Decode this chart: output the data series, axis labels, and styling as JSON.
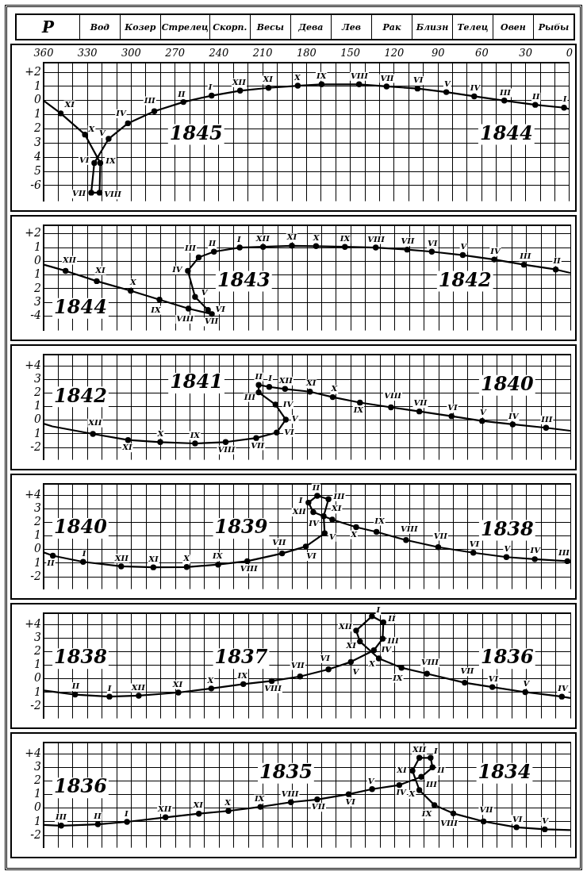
{
  "chart_data": [
    {
      "type": "other",
      "annotations": [
        "P",
        "Вод",
        "Козер",
        "Стрелец",
        "Скорп.",
        "Весы",
        "Дева",
        "Лев",
        "Рак",
        "Близн",
        "Телец",
        "Овен",
        "Рыбы"
      ]
    },
    {
      "type": "line",
      "annotations": [
        "1845",
        "1844"
      ],
      "xlim": [
        360,
        0
      ],
      "xticks": [
        360,
        {
          "value": 350,
          "label": null
        },
        {
          "value": 340,
          "label": null
        },
        330,
        {
          "value": 320,
          "label": null
        },
        {
          "value": 310,
          "label": null
        },
        300,
        {
          "value": 290,
          "label": null
        },
        {
          "value": 280,
          "label": null
        },
        270,
        {
          "value": 260,
          "label": null
        },
        {
          "value": 250,
          "label": null
        },
        240,
        {
          "value": 230,
          "label": null
        },
        {
          "value": 220,
          "label": null
        },
        210,
        {
          "value": 200,
          "label": null
        },
        {
          "value": 190,
          "label": null
        },
        180,
        {
          "value": 170,
          "label": null
        },
        {
          "value": 160,
          "label": null
        },
        150,
        {
          "value": 140,
          "label": null
        },
        {
          "value": 130,
          "label": null
        },
        120,
        {
          "value": 110,
          "label": null
        },
        {
          "value": 100,
          "label": null
        },
        90,
        {
          "value": 80,
          "label": null
        },
        {
          "value": 70,
          "label": null
        },
        60,
        {
          "value": 50,
          "label": null
        },
        {
          "value": 40,
          "label": null
        },
        30,
        {
          "value": 20,
          "label": null
        },
        {
          "value": 10,
          "label": null
        },
        0
      ],
      "ylim": [
        -7.1,
        2.7
      ],
      "yticks": [
        {
          "value": 2,
          "label": "+2"
        },
        1,
        0,
        {
          "value": -1,
          "label": "1"
        },
        {
          "value": -2,
          "label": "2"
        },
        {
          "value": -3,
          "label": "3"
        },
        {
          "value": -4,
          "label": "4"
        },
        {
          "value": -5,
          "label": "5"
        },
        -6
      ],
      "grid": true,
      "marker": "circle",
      "line_style": "solid",
      "series": [
        {
          "color": "#000000",
          "x": [
            0,
            3.7,
            23.4,
            44.6,
            65.2,
            84.3,
            104,
            125.2,
            144,
            169.7,
            186,
            206,
            225.5,
            245,
            264.3,
            284.2,
            302.3,
            315.5,
            325.3,
            327.4,
            321.7,
            321.2,
            331.7,
            348.3,
            360
          ],
          "values": [
            -0.6,
            -0.5,
            -0.3,
            0,
            0.3,
            0.6,
            0.85,
            1,
            1.15,
            1.15,
            1.05,
            0.9,
            0.7,
            0.35,
            -0.1,
            -0.75,
            -1.6,
            -2.7,
            -4.4,
            -6.5,
            -6.5,
            -4.4,
            -2.4,
            -0.9,
            0
          ],
          "value_labels": [
            null,
            "I",
            "II",
            "III",
            "IV",
            "V",
            "VI",
            "VII",
            "VIII",
            "IX",
            "X",
            "XI",
            "XII",
            "I",
            "II",
            "III",
            "IV",
            "V",
            "VI",
            "VII",
            "VIII",
            "IX",
            "X",
            "XI",
            null
          ]
        }
      ]
    },
    {
      "type": "line",
      "annotations": [
        "1844",
        "1843",
        "1842"
      ],
      "xlim": [
        360,
        0
      ],
      "xticks": [
        360,
        350,
        340,
        330,
        320,
        310,
        300,
        290,
        280,
        270,
        260,
        250,
        240,
        230,
        220,
        210,
        200,
        190,
        180,
        170,
        160,
        150,
        140,
        130,
        120,
        110,
        100,
        90,
        80,
        70,
        60,
        50,
        40,
        30,
        20,
        10,
        0
      ],
      "tick_labels": "y",
      "ylim": [
        -5.05,
        2.6
      ],
      "yticks": [
        {
          "value": 2,
          "label": "+2"
        },
        1,
        0,
        {
          "value": -1,
          "label": "1"
        },
        {
          "value": -2,
          "label": "2"
        },
        {
          "value": -3,
          "label": "3"
        },
        -4
      ],
      "grid": true,
      "marker": "circle",
      "line_style": "solid",
      "series": [
        {
          "color": "#000000",
          "x": [
            0,
            10,
            31.7,
            52,
            73.5,
            94.7,
            111.5,
            133,
            154.1,
            173.8,
            190.3,
            210,
            226,
            243.6,
            254,
            261.4,
            256.5,
            247.7,
            245,
            261,
            280.8,
            300.5,
            323.7,
            345,
            360
          ],
          "values": [
            -0.85,
            -0.6,
            -0.25,
            0.13,
            0.45,
            0.7,
            0.85,
            1,
            1.05,
            1.1,
            1.13,
            1.05,
            1,
            0.7,
            0.28,
            -0.7,
            -2.6,
            -3.55,
            -3.85,
            -3.45,
            -2.8,
            -2.15,
            -1.45,
            -0.7,
            -0.25
          ],
          "value_labels": [
            null,
            "II",
            "III",
            "IV",
            "V",
            "VI",
            "VII",
            "VIII",
            "IX",
            "X",
            "XI",
            "XII",
            "I",
            "II",
            "III",
            "IV",
            "V",
            "VI",
            "VII",
            "VIII",
            "IX",
            "X",
            "XI",
            "XII",
            null
          ]
        }
      ]
    },
    {
      "type": "line",
      "annotations": [
        "1842",
        "1841",
        "1840"
      ],
      "xlim": [
        360,
        0
      ],
      "xticks": [
        360,
        350,
        340,
        330,
        320,
        310,
        300,
        290,
        280,
        270,
        260,
        250,
        240,
        230,
        220,
        210,
        200,
        190,
        180,
        170,
        160,
        150,
        140,
        130,
        120,
        110,
        100,
        90,
        80,
        70,
        60,
        50,
        40,
        30,
        20,
        10,
        0
      ],
      "tick_labels": "y",
      "ylim": [
        -2.9,
        4.8
      ],
      "yticks": [
        {
          "value": 4,
          "label": "+4"
        },
        3,
        2,
        1,
        0,
        {
          "value": -1,
          "label": "1"
        },
        -2
      ],
      "grid": true,
      "marker": "circle",
      "line_style": "solid",
      "series": [
        {
          "color": "#000000",
          "x": [
            0,
            16.6,
            39.4,
            60.3,
            81.2,
            103.2,
            122.6,
            143.8,
            162.4,
            178,
            195,
            205.8,
            213,
            213,
            201.5,
            194.5,
            200.7,
            214.7,
            235.6,
            256.5,
            280.3,
            302.3,
            326.3,
            354,
            360
          ],
          "values": [
            -0.77,
            -0.55,
            -0.3,
            -0.05,
            0.3,
            0.65,
            0.95,
            1.3,
            1.7,
            2.1,
            2.3,
            2.45,
            2.6,
            2.05,
            1.15,
            0.05,
            -0.9,
            -1.3,
            -1.6,
            -1.7,
            -1.6,
            -1.45,
            -1,
            -0.45,
            -0.25
          ],
          "value_labels": [
            null,
            "III",
            "IV",
            "V",
            "VI",
            "VII",
            "VIII",
            "IX",
            "X",
            "XI",
            "XII",
            "I",
            "II",
            "III",
            "IV",
            "V",
            "VI",
            "VII",
            "VIII",
            "IX",
            "X",
            "XI",
            "XII",
            null,
            null
          ]
        }
      ]
    },
    {
      "type": "line",
      "annotations": [
        "1840",
        "1839",
        "1838"
      ],
      "xlim": [
        360,
        0
      ],
      "xticks": [
        360,
        350,
        340,
        330,
        320,
        310,
        300,
        290,
        280,
        270,
        260,
        250,
        240,
        230,
        220,
        210,
        200,
        190,
        180,
        170,
        160,
        150,
        140,
        130,
        120,
        110,
        100,
        90,
        80,
        70,
        60,
        50,
        40,
        30,
        20,
        10,
        0
      ],
      "tick_labels": "y",
      "ylim": [
        -2.9,
        4.8
      ],
      "yticks": [
        {
          "value": 4,
          "label": "+4"
        },
        3,
        2,
        1,
        0,
        {
          "value": -1,
          "label": "1"
        },
        -2
      ],
      "grid": true,
      "marker": "circle",
      "line_style": "solid",
      "series": [
        {
          "color": "#000000",
          "x": [
            0,
            2,
            24.3,
            43.7,
            66.3,
            90.3,
            112.3,
            132.5,
            146.4,
            162.7,
            175.7,
            179,
            173,
            165.3,
            168.6,
            167.9,
            180.8,
            197,
            220.8,
            240.7,
            262.2,
            285,
            307,
            333,
            353.7,
            360
          ],
          "values": [
            -0.87,
            -0.85,
            -0.7,
            -0.55,
            -0.23,
            0.18,
            0.7,
            1.3,
            1.65,
            2.2,
            2.75,
            3.45,
            3.95,
            3.7,
            2.45,
            1.2,
            0.23,
            -0.28,
            -0.85,
            -1.1,
            -1.28,
            -1.3,
            -1.23,
            -0.9,
            -0.45,
            -0.2
          ],
          "value_labels": [
            null,
            "III",
            "IV",
            "V",
            "VI",
            "VII",
            "VIII",
            "IX",
            "X",
            "XI",
            "XII",
            "I",
            "II",
            "III",
            "IV",
            "V",
            "VI",
            "VII",
            "VIII",
            "IX",
            "X",
            "XI",
            "XII",
            "I",
            "II",
            null
          ]
        }
      ]
    },
    {
      "type": "line",
      "annotations": [
        "1838",
        "1837",
        "1836"
      ],
      "xlim": [
        360,
        0
      ],
      "xticks": [
        360,
        350,
        340,
        330,
        320,
        310,
        300,
        290,
        280,
        270,
        260,
        250,
        240,
        230,
        220,
        210,
        200,
        190,
        180,
        170,
        160,
        150,
        140,
        130,
        120,
        110,
        100,
        90,
        80,
        70,
        60,
        50,
        40,
        30,
        20,
        10,
        0
      ],
      "tick_labels": "y",
      "ylim": [
        -2.9,
        4.8
      ],
      "yticks": [
        {
          "value": 4,
          "label": "+4"
        },
        3,
        2,
        1,
        0,
        {
          "value": -1,
          "label": "1"
        },
        -2
      ],
      "grid": true,
      "marker": "circle",
      "line_style": "solid",
      "series": [
        {
          "color": "#000000",
          "x": [
            0,
            5.8,
            30.8,
            53.3,
            72.2,
            98,
            115.4,
            130.9,
            143.8,
            146.4,
            135.6,
            127.8,
            128.3,
            134.3,
            150,
            165.3,
            184.7,
            204.1,
            223.5,
            245.4,
            267.9,
            295,
            315,
            338.5,
            360
          ],
          "values": [
            -1.4,
            -1.3,
            -0.97,
            -0.6,
            -0.28,
            0.38,
            0.82,
            1.5,
            2.75,
            3.55,
            4.6,
            4.15,
            2.95,
            2.1,
            1.25,
            0.7,
            0.18,
            -0.15,
            -0.38,
            -0.7,
            -1,
            -1.23,
            -1.3,
            -1.15,
            -0.85
          ],
          "value_labels": [
            null,
            "IV",
            "V",
            "VI",
            "VII",
            "VIII",
            "IX",
            "X",
            "XI",
            "XII",
            "I",
            "II",
            "III",
            "IV",
            "V",
            "VI",
            "VII",
            "VIII",
            "IX",
            "X",
            "XI",
            "XII",
            "I",
            "II",
            null
          ]
        }
      ]
    },
    {
      "type": "line",
      "annotations": [
        "1836",
        "1835",
        "1834"
      ],
      "xlim": [
        360,
        0
      ],
      "xticks": [
        360,
        350,
        340,
        330,
        320,
        310,
        300,
        290,
        280,
        270,
        260,
        250,
        240,
        230,
        220,
        210,
        200,
        190,
        180,
        170,
        160,
        150,
        140,
        130,
        120,
        110,
        100,
        90,
        80,
        70,
        60,
        50,
        40,
        30,
        20,
        10,
        0
      ],
      "tick_labels": "y",
      "ylim": [
        -2.9,
        4.8
      ],
      "yticks": [
        {
          "value": 4,
          "label": "+4"
        },
        3,
        2,
        1,
        0,
        {
          "value": -1,
          "label": "1"
        },
        -2
      ],
      "grid": true,
      "marker": "circle",
      "line_style": "solid",
      "series": [
        {
          "color": "#000000",
          "x": [
            0,
            17.5,
            36.8,
            59.3,
            80,
            92.9,
            103.2,
            107.9,
            103.2,
            95.5,
            94.2,
            101.9,
            116.9,
            135.5,
            151.5,
            173,
            191,
            211.8,
            233.7,
            253.9,
            276.7,
            303,
            322.9,
            348,
            360
          ],
          "values": [
            -1.6,
            -1.55,
            -1.4,
            -0.97,
            -0.38,
            0.23,
            1.33,
            2.75,
            3.7,
            3.7,
            3,
            2.3,
            1.7,
            1.4,
            1.03,
            0.64,
            0.44,
            0.1,
            -0.2,
            -0.4,
            -0.67,
            -1,
            -1.18,
            -1.28,
            -1.23
          ],
          "value_labels": [
            null,
            "V",
            "VI",
            "VII",
            "VIII",
            "IX",
            "X",
            "XI",
            "XII",
            "I",
            "II",
            "III",
            "IV",
            "V",
            "VI",
            "VII",
            "VIII",
            "IX",
            "X",
            "XI",
            "XII",
            "I",
            "II",
            "III",
            null
          ]
        }
      ]
    }
  ]
}
